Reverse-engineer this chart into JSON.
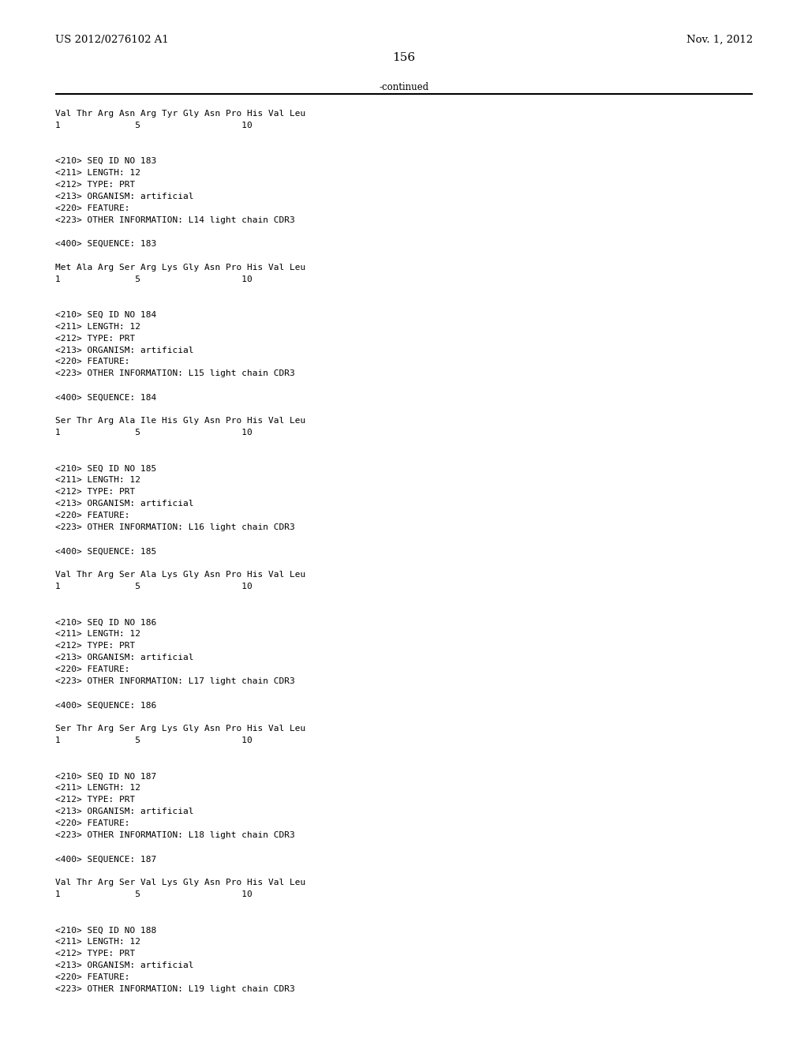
{
  "header_left": "US 2012/0276102 A1",
  "header_right": "Nov. 1, 2012",
  "page_number": "156",
  "continued_text": "-continued",
  "background_color": "#ffffff",
  "text_color": "#000000",
  "header_fontsize": 9.5,
  "mono_fontsize": 8.0,
  "page_num_fontsize": 11.0,
  "continued_fontsize": 8.5,
  "content_lines": [
    "Val Thr Arg Asn Arg Tyr Gly Asn Pro His Val Leu",
    "1              5                   10",
    "",
    "",
    "<210> SEQ ID NO 183",
    "<211> LENGTH: 12",
    "<212> TYPE: PRT",
    "<213> ORGANISM: artificial",
    "<220> FEATURE:",
    "<223> OTHER INFORMATION: L14 light chain CDR3",
    "",
    "<400> SEQUENCE: 183",
    "",
    "Met Ala Arg Ser Arg Lys Gly Asn Pro His Val Leu",
    "1              5                   10",
    "",
    "",
    "<210> SEQ ID NO 184",
    "<211> LENGTH: 12",
    "<212> TYPE: PRT",
    "<213> ORGANISM: artificial",
    "<220> FEATURE:",
    "<223> OTHER INFORMATION: L15 light chain CDR3",
    "",
    "<400> SEQUENCE: 184",
    "",
    "Ser Thr Arg Ala Ile His Gly Asn Pro His Val Leu",
    "1              5                   10",
    "",
    "",
    "<210> SEQ ID NO 185",
    "<211> LENGTH: 12",
    "<212> TYPE: PRT",
    "<213> ORGANISM: artificial",
    "<220> FEATURE:",
    "<223> OTHER INFORMATION: L16 light chain CDR3",
    "",
    "<400> SEQUENCE: 185",
    "",
    "Val Thr Arg Ser Ala Lys Gly Asn Pro His Val Leu",
    "1              5                   10",
    "",
    "",
    "<210> SEQ ID NO 186",
    "<211> LENGTH: 12",
    "<212> TYPE: PRT",
    "<213> ORGANISM: artificial",
    "<220> FEATURE:",
    "<223> OTHER INFORMATION: L17 light chain CDR3",
    "",
    "<400> SEQUENCE: 186",
    "",
    "Ser Thr Arg Ser Arg Lys Gly Asn Pro His Val Leu",
    "1              5                   10",
    "",
    "",
    "<210> SEQ ID NO 187",
    "<211> LENGTH: 12",
    "<212> TYPE: PRT",
    "<213> ORGANISM: artificial",
    "<220> FEATURE:",
    "<223> OTHER INFORMATION: L18 light chain CDR3",
    "",
    "<400> SEQUENCE: 187",
    "",
    "Val Thr Arg Ser Val Lys Gly Asn Pro His Val Leu",
    "1              5                   10",
    "",
    "",
    "<210> SEQ ID NO 188",
    "<211> LENGTH: 12",
    "<212> TYPE: PRT",
    "<213> ORGANISM: artificial",
    "<220> FEATURE:",
    "<223> OTHER INFORMATION: L19 light chain CDR3"
  ]
}
